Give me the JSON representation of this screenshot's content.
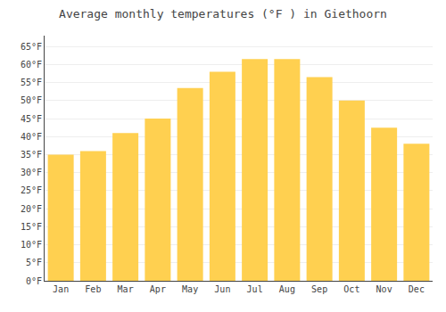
{
  "chart_data": {
    "type": "bar",
    "title": "Average monthly temperatures (°F ) in Giethoorn",
    "categories": [
      "Jan",
      "Feb",
      "Mar",
      "Apr",
      "May",
      "Jun",
      "Jul",
      "Aug",
      "Sep",
      "Oct",
      "Nov",
      "Dec"
    ],
    "values": [
      35,
      36,
      41,
      45,
      53.5,
      58,
      61.5,
      61.5,
      56.5,
      50,
      42.5,
      38
    ],
    "color": "#FFD050",
    "ylim": [
      0,
      68
    ],
    "yticks": [
      {
        "value": 0,
        "label": "0°F"
      },
      {
        "value": 5,
        "label": "5°F"
      },
      {
        "value": 10,
        "label": "10°F"
      },
      {
        "value": 15,
        "label": "15°F"
      },
      {
        "value": 20,
        "label": "20°F"
      },
      {
        "value": 25,
        "label": "25°F"
      },
      {
        "value": 30,
        "label": "30°F"
      },
      {
        "value": 35,
        "label": "35°F"
      },
      {
        "value": 40,
        "label": "40°F"
      },
      {
        "value": 45,
        "label": "45°F"
      },
      {
        "value": 50,
        "label": "50°F"
      },
      {
        "value": 55,
        "label": "55°F"
      },
      {
        "value": 60,
        "label": "60°F"
      },
      {
        "value": 65,
        "label": "65°F"
      }
    ],
    "grid": true
  }
}
